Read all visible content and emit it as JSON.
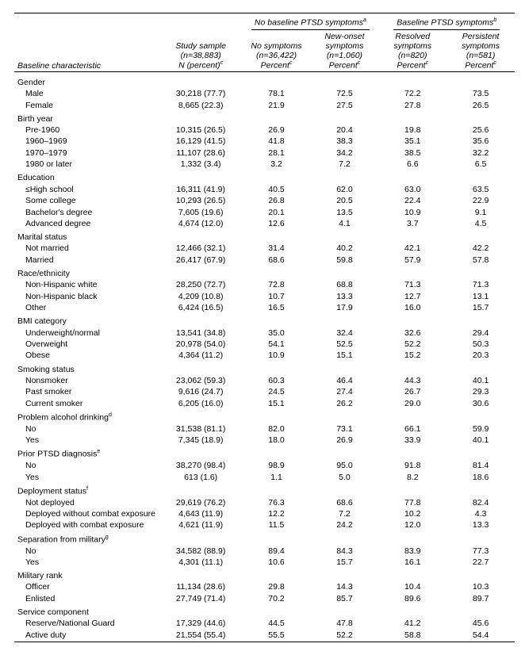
{
  "header": {
    "group_no_baseline": "No baseline PTSD symptoms",
    "group_baseline": "Baseline PTSD symptoms",
    "sup_a": "a",
    "sup_b": "b",
    "sup_c": "c",
    "baseline_char": "Baseline characteristic",
    "study_sample_line1": "Study sample",
    "study_sample_line2": "(n=38,883)",
    "study_sample_line3": "N (percent)",
    "no_symptoms_line1": "No symptoms",
    "no_symptoms_line2": "(n=36,422)",
    "no_symptoms_line3": "Percent",
    "new_onset_line1": "New-onset",
    "new_onset_line2": "symptoms",
    "new_onset_line3": "(n=1,060)",
    "new_onset_line4": "Percent",
    "resolved_line1": "Resolved",
    "resolved_line2": "symptoms",
    "resolved_line3": "(n=820)",
    "resolved_line4": "Percent",
    "persistent_line1": "Persistent",
    "persistent_line2": "symptoms",
    "persistent_line3": "(n=581)",
    "persistent_line4": "Percent"
  },
  "sections": [
    {
      "label": "Gender",
      "rows": [
        {
          "l": "Male",
          "c": [
            "30,218 (77.7)",
            "78.1",
            "72.5",
            "72.2",
            "73.5"
          ]
        },
        {
          "l": "Female",
          "c": [
            "8,665 (22.3)",
            "21.9",
            "27.5",
            "27.8",
            "26.5"
          ]
        }
      ]
    },
    {
      "label": "Birth year",
      "rows": [
        {
          "l": "Pre-1960",
          "c": [
            "10,315 (26.5)",
            "26.9",
            "20.4",
            "19.8",
            "25.6"
          ]
        },
        {
          "l": "1960–1969",
          "c": [
            "16,129 (41.5)",
            "41.8",
            "38.3",
            "35.1",
            "35.6"
          ]
        },
        {
          "l": "1970–1979",
          "c": [
            "11,107 (28.6)",
            "28.1",
            "34.2",
            "38.5",
            "32.2"
          ]
        },
        {
          "l": "1980 or later",
          "c": [
            "1,332 (3.4)",
            "3.2",
            "7.2",
            "6.6",
            "6.5"
          ]
        }
      ]
    },
    {
      "label": "Education",
      "rows": [
        {
          "l": "≤High school",
          "c": [
            "16,311 (41.9)",
            "40.5",
            "62.0",
            "63.0",
            "63.5"
          ]
        },
        {
          "l": "Some college",
          "c": [
            "10,293 (26.5)",
            "26.8",
            "20.5",
            "22.4",
            "22.9"
          ]
        },
        {
          "l": "Bachelor's degree",
          "c": [
            "7,605 (19.6)",
            "20.1",
            "13.5",
            "10.9",
            "9.1"
          ]
        },
        {
          "l": "Advanced degree",
          "c": [
            "4,674 (12.0)",
            "12.6",
            "4.1",
            "3.7",
            "4.5"
          ]
        }
      ]
    },
    {
      "label": "Marital status",
      "rows": [
        {
          "l": "Not married",
          "c": [
            "12,466 (32.1)",
            "31.4",
            "40.2",
            "42.1",
            "42.2"
          ]
        },
        {
          "l": "Married",
          "c": [
            "26,417 (67.9)",
            "68.6",
            "59.8",
            "57.9",
            "57.8"
          ]
        }
      ]
    },
    {
      "label": "Race/ethnicity",
      "rows": [
        {
          "l": "Non-Hispanic white",
          "c": [
            "28,250 (72.7)",
            "72.8",
            "68.8",
            "71.3",
            "71.3"
          ]
        },
        {
          "l": "Non-Hispanic black",
          "c": [
            "4,209 (10.8)",
            "10.7",
            "13.3",
            "12.7",
            "13.1"
          ]
        },
        {
          "l": "Other",
          "c": [
            "6,424 (16.5)",
            "16.5",
            "17.9",
            "16.0",
            "15.7"
          ]
        }
      ]
    },
    {
      "label": "BMI category",
      "rows": [
        {
          "l": "Underweight/normal",
          "c": [
            "13,541 (34.8)",
            "35.0",
            "32.4",
            "32.6",
            "29.4"
          ]
        },
        {
          "l": "Overweight",
          "c": [
            "20,978 (54.0)",
            "54.1",
            "52.5",
            "52.2",
            "50.3"
          ]
        },
        {
          "l": "Obese",
          "c": [
            "4,364 (11.2)",
            "10.9",
            "15.1",
            "15.2",
            "20.3"
          ]
        }
      ]
    },
    {
      "label": "Smoking status",
      "rows": [
        {
          "l": "Nonsmoker",
          "c": [
            "23,062 (59.3)",
            "60.3",
            "46.4",
            "44.3",
            "40.1"
          ]
        },
        {
          "l": "Past smoker",
          "c": [
            "9,616 (24.7)",
            "24.5",
            "27.4",
            "26.7",
            "29.3"
          ]
        },
        {
          "l": "Current smoker",
          "c": [
            "6,205 (16.0)",
            "15.1",
            "26.2",
            "29.0",
            "30.6"
          ]
        }
      ]
    },
    {
      "label": "Problem alcohol drinking",
      "sup": "d",
      "rows": [
        {
          "l": "No",
          "c": [
            "31,538 (81.1)",
            "82.0",
            "73.1",
            "66.1",
            "59.9"
          ]
        },
        {
          "l": "Yes",
          "c": [
            "7,345 (18.9)",
            "18.0",
            "26.9",
            "33.9",
            "40.1"
          ]
        }
      ]
    },
    {
      "label": "Prior PTSD diagnosis",
      "sup": "e",
      "rows": [
        {
          "l": "No",
          "c": [
            "38,270 (98.4)",
            "98.9",
            "95.0",
            "91.8",
            "81.4"
          ]
        },
        {
          "l": "Yes",
          "c": [
            "613 (1.6)",
            "1.1",
            "5.0",
            "8.2",
            "18.6"
          ]
        }
      ]
    },
    {
      "label": "Deployment status",
      "sup": "f",
      "rows": [
        {
          "l": "Not deployed",
          "c": [
            "29,619 (76.2)",
            "76.3",
            "68.6",
            "77.8",
            "82.4"
          ]
        },
        {
          "l": "Deployed without combat exposure",
          "c": [
            "4,643 (11.9)",
            "12.2",
            "7.2",
            "10.2",
            "4.3"
          ]
        },
        {
          "l": "Deployed with combat exposure",
          "c": [
            "4,621 (11.9)",
            "11.5",
            "24.2",
            "12.0",
            "13.3"
          ]
        }
      ]
    },
    {
      "label": "Separation from military",
      "sup": "g",
      "rows": [
        {
          "l": "No",
          "c": [
            "34,582 (88.9)",
            "89.4",
            "84.3",
            "83.9",
            "77.3"
          ]
        },
        {
          "l": "Yes",
          "c": [
            "4,301 (11.1)",
            "10.6",
            "15.7",
            "16.1",
            "22.7"
          ]
        }
      ]
    },
    {
      "label": "Military rank",
      "rows": [
        {
          "l": "Officer",
          "c": [
            "11,134 (28.6)",
            "29.8",
            "14.3",
            "10.4",
            "10.3"
          ]
        },
        {
          "l": "Enlisted",
          "c": [
            "27,749 (71.4)",
            "70.2",
            "85.7",
            "89.6",
            "89.7"
          ]
        }
      ]
    },
    {
      "label": "Service component",
      "rows": [
        {
          "l": "Reserve/National Guard",
          "c": [
            "17,329 (44.6)",
            "44.5",
            "47.8",
            "41.2",
            "45.6"
          ]
        },
        {
          "l": "Active duty",
          "c": [
            "21,554 (55.4)",
            "55.5",
            "52.2",
            "58.8",
            "54.4"
          ]
        }
      ]
    }
  ]
}
